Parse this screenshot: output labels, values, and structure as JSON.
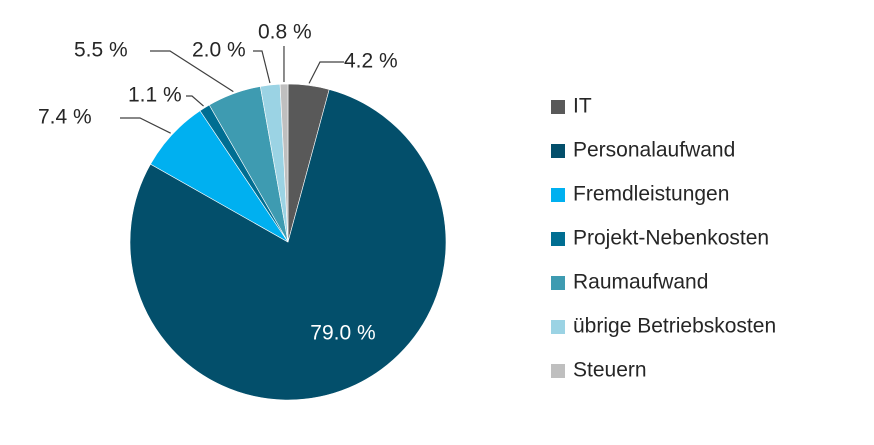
{
  "chart_data": {
    "type": "pie",
    "title": "",
    "legend_position": "right",
    "categories": [
      "IT",
      "Personalaufwand",
      "Fremdleistungen",
      "Projekt-Nebenkosten",
      "Raumaufwand",
      "übrige Betriebskosten",
      "Steuern"
    ],
    "values": [
      4.2,
      79.0,
      7.4,
      1.1,
      5.5,
      2.0,
      0.8
    ],
    "labels": [
      "4.2 %",
      "79.0 %",
      "7.4 %",
      "1.1 %",
      "5.5 %",
      "2.0 %",
      "0.8 %"
    ],
    "colors": [
      "#595959",
      "#034f6b",
      "#00b0f0",
      "#006e92",
      "#3e9bb1",
      "#9bd3e4",
      "#bfbfbf"
    ]
  }
}
